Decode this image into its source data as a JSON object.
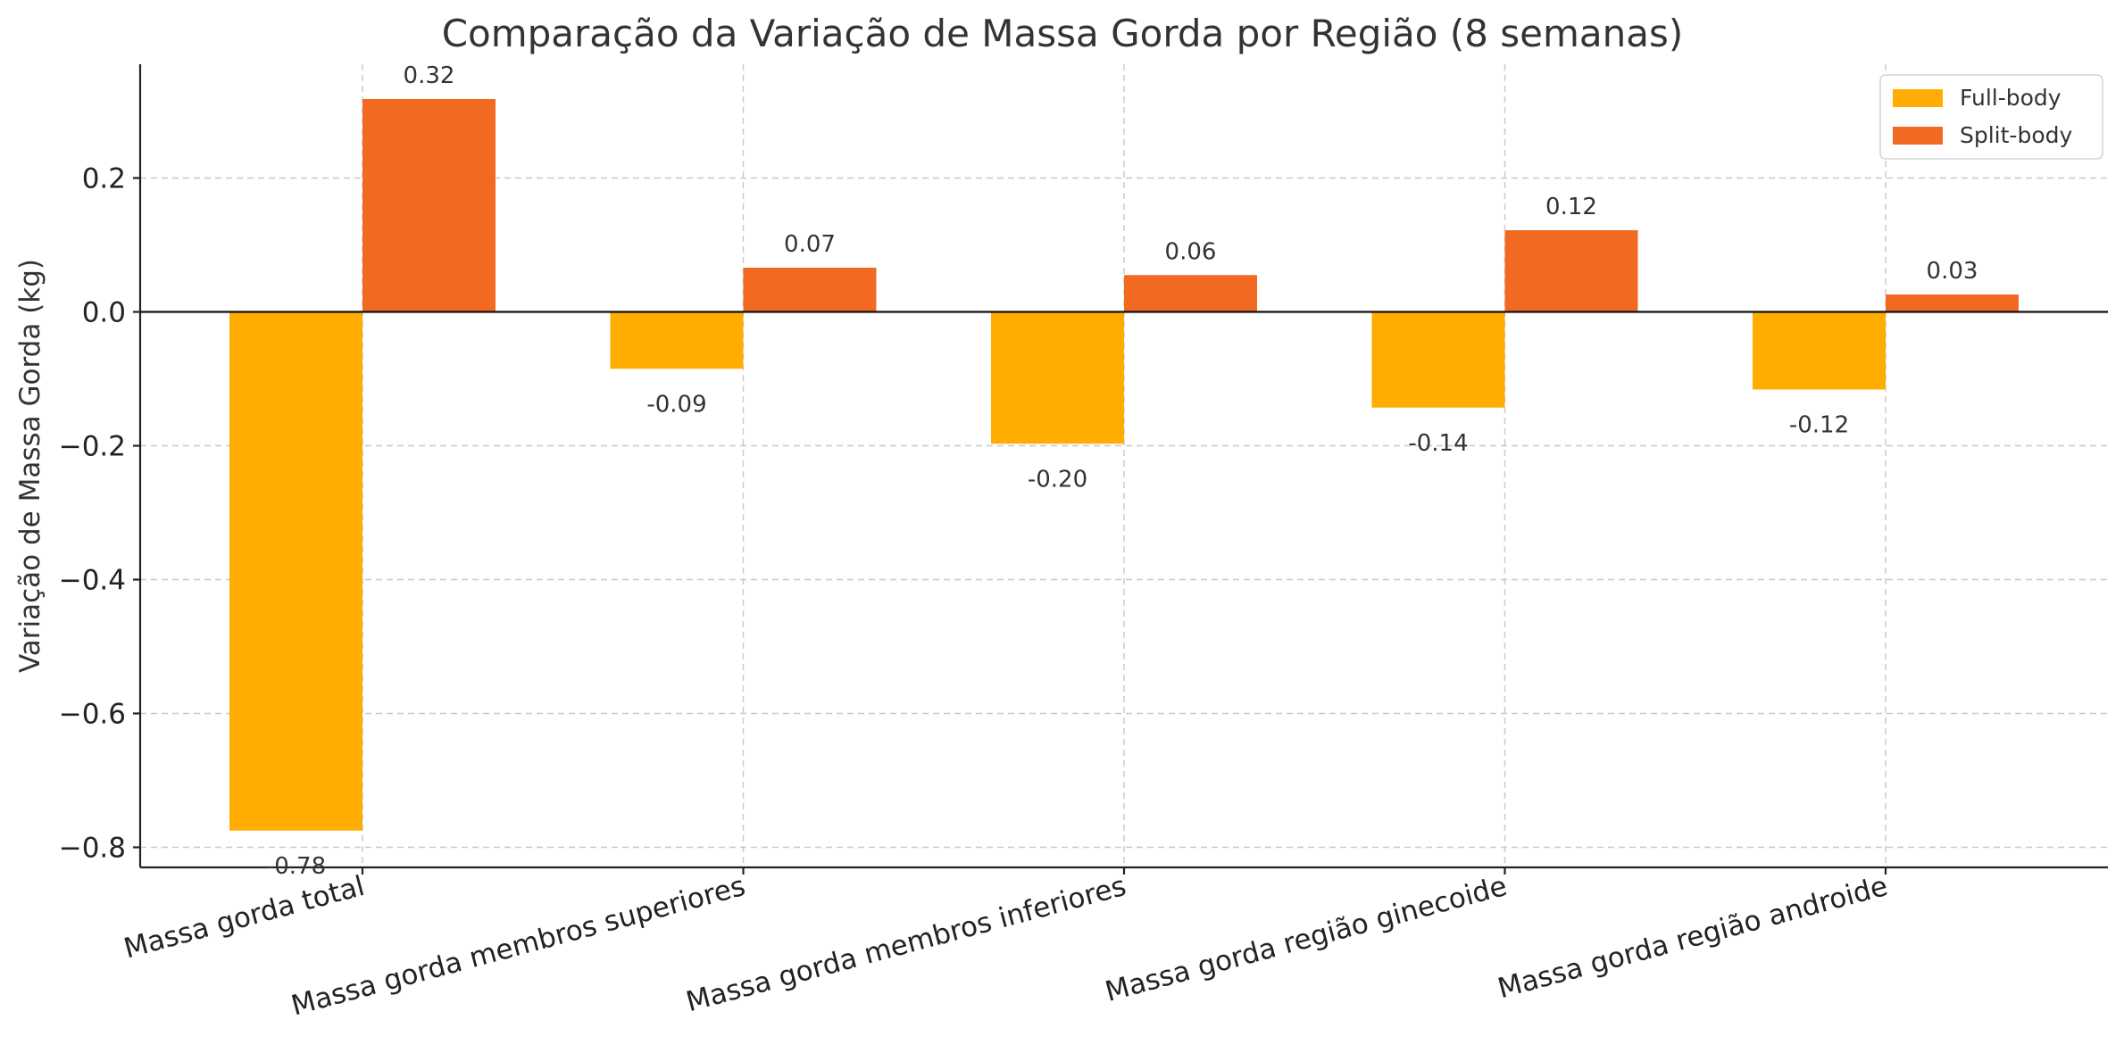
{
  "chart_data": {
    "type": "bar",
    "title": "Comparação da Variação de Massa Gorda por Região (8 semanas)",
    "xlabel": "",
    "ylabel": "Variação de Massa Gorda (kg)",
    "ylim": [
      -0.83,
      0.37
    ],
    "yticks": [
      {
        "value": 0.2,
        "label": "0.2"
      },
      {
        "value": 0.0,
        "label": "0.0"
      },
      {
        "value": -0.2,
        "label": "−0.2"
      },
      {
        "value": -0.4,
        "label": "−0.4"
      },
      {
        "value": -0.6,
        "label": "−0.6"
      },
      {
        "value": -0.8,
        "label": "−0.8"
      }
    ],
    "categories": [
      "Massa gorda total",
      "Massa gorda membros superiores",
      "Massa gorda membros inferiores",
      "Massa gorda região ginecoide",
      "Massa gorda região androide"
    ],
    "series": [
      {
        "name": "Full-body",
        "color": "#FFAD00",
        "values": [
          -0.775,
          -0.085,
          -0.197,
          -0.143,
          -0.116
        ],
        "labels": [
          "-0.78",
          "-0.09",
          "-0.20",
          "-0.14",
          "-0.12"
        ]
      },
      {
        "name": "Split-body",
        "color": "#F26A22",
        "values": [
          0.318,
          0.066,
          0.055,
          0.122,
          0.026
        ],
        "labels": [
          "0.32",
          "0.07",
          "0.06",
          "0.12",
          "0.03"
        ]
      }
    ],
    "grid": true,
    "legend_position": "top-right"
  }
}
